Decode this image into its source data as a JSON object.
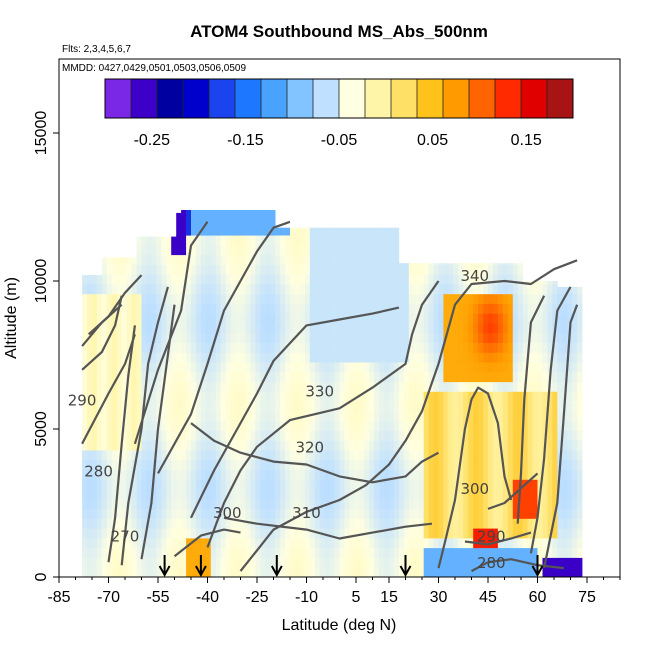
{
  "chart_data": {
    "type": "heatmap",
    "title": "ATOM4 Southbound MS_Abs_500nm",
    "flights_label": "Flts: 2,3,4,5,6,7",
    "dates_label": "MMDD: 0427,0429,0501,0503,0506,0509",
    "xlabel": "Latitude (deg N)",
    "ylabel": "Altitude (m)",
    "xlim": [
      -85,
      85
    ],
    "ylim": [
      0,
      17500
    ],
    "xticks": [
      -85,
      -70,
      -55,
      -40,
      -25,
      -10,
      5,
      15,
      30,
      45,
      60,
      75
    ],
    "yticks": [
      0,
      5000,
      10000,
      15000
    ],
    "colorbar": {
      "ticks": [
        -0.25,
        -0.15,
        -0.05,
        0.05,
        0.15
      ],
      "range": [
        -0.3,
        0.2
      ],
      "colors": [
        "#7a28e6",
        "#3c00c8",
        "#0000a0",
        "#0000cd",
        "#1c44ee",
        "#1e78ff",
        "#4aa2ff",
        "#82c4ff",
        "#bfe0ff",
        "#ffffe1",
        "#fff5a8",
        "#ffe066",
        "#ffc21a",
        "#ff9b00",
        "#ff6400",
        "#ff2a00",
        "#e00000",
        "#a81414"
      ]
    },
    "arrows_lat": [
      -53,
      -42,
      -19,
      20,
      60
    ],
    "contour_labels": [
      "340",
      "330",
      "320",
      "310",
      "300",
      "290",
      "280",
      "270",
      "300",
      "290",
      "280"
    ]
  }
}
